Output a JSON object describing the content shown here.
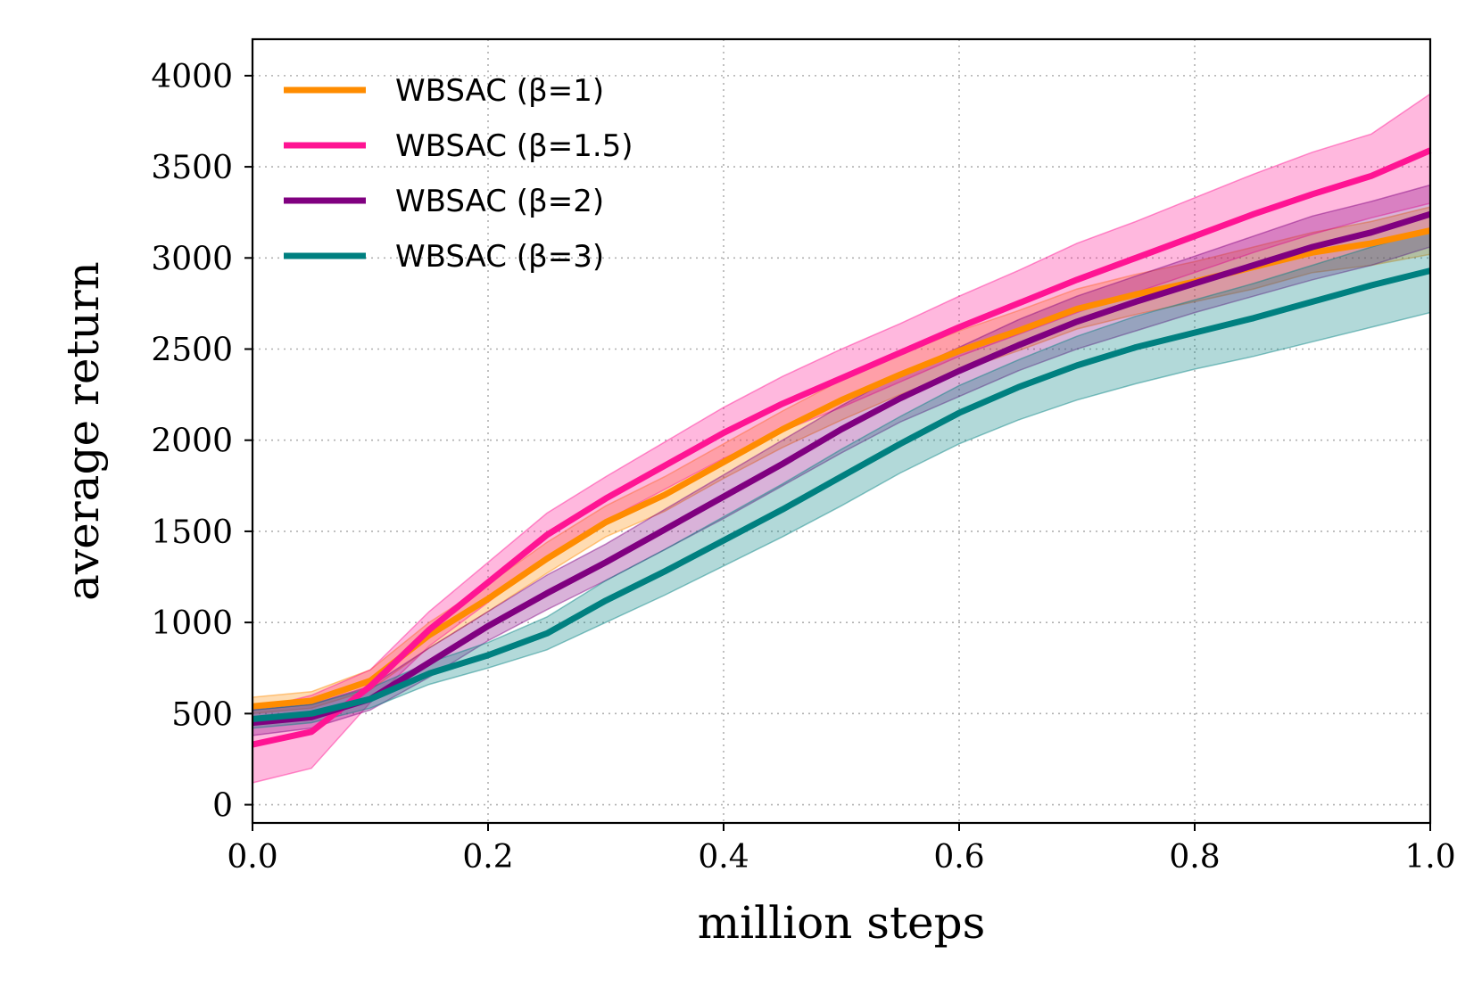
{
  "chart_data": {
    "type": "line",
    "xlabel": "million steps",
    "ylabel": "average return",
    "xlim": [
      0.0,
      1.0
    ],
    "ylim": [
      -100,
      4200
    ],
    "grid": true,
    "legend_position": "top-left",
    "x_ticks": [
      0.0,
      0.2,
      0.4,
      0.6,
      0.8,
      1.0
    ],
    "x_tick_labels": [
      "0.0",
      "0.2",
      "0.4",
      "0.6",
      "0.8",
      "1.0"
    ],
    "y_ticks": [
      0,
      500,
      1000,
      1500,
      2000,
      2500,
      3000,
      3500,
      4000
    ],
    "y_tick_labels": [
      "0",
      "500",
      "1000",
      "1500",
      "2000",
      "2500",
      "3000",
      "3500",
      "4000"
    ],
    "x": [
      0.0,
      0.05,
      0.1,
      0.15,
      0.2,
      0.25,
      0.3,
      0.35,
      0.4,
      0.45,
      0.5,
      0.55,
      0.6,
      0.65,
      0.7,
      0.75,
      0.8,
      0.85,
      0.9,
      0.95,
      1.0
    ],
    "series": [
      {
        "name": "WBSAC (β=1)",
        "color": "#ff8c00",
        "values": [
          540,
          570,
          680,
          930,
          1130,
          1350,
          1550,
          1700,
          1880,
          2060,
          2220,
          2360,
          2490,
          2600,
          2720,
          2800,
          2870,
          2950,
          3030,
          3080,
          3150
        ],
        "lower": [
          500,
          530,
          630,
          860,
          1060,
          1270,
          1470,
          1610,
          1790,
          1960,
          2110,
          2250,
          2380,
          2490,
          2610,
          2690,
          2760,
          2830,
          2920,
          2960,
          3020
        ],
        "upper": [
          590,
          620,
          740,
          1000,
          1210,
          1440,
          1640,
          1800,
          1980,
          2160,
          2330,
          2470,
          2600,
          2710,
          2830,
          2910,
          2980,
          3060,
          3140,
          3200,
          3280
        ]
      },
      {
        "name": "WBSAC (β=1.5)",
        "color": "#ff1493",
        "values": [
          330,
          400,
          650,
          960,
          1220,
          1480,
          1680,
          1860,
          2040,
          2200,
          2340,
          2480,
          2620,
          2750,
          2880,
          3000,
          3120,
          3240,
          3350,
          3450,
          3590
        ],
        "lower": [
          120,
          200,
          560,
          870,
          1110,
          1360,
          1560,
          1730,
          1900,
          2050,
          2180,
          2320,
          2460,
          2580,
          2700,
          2810,
          2920,
          3030,
          3130,
          3220,
          3300
        ],
        "upper": [
          520,
          600,
          740,
          1060,
          1330,
          1600,
          1800,
          1990,
          2180,
          2350,
          2500,
          2640,
          2790,
          2930,
          3080,
          3200,
          3330,
          3460,
          3580,
          3680,
          3900
        ]
      },
      {
        "name": "WBSAC (β=2)",
        "color": "#800080",
        "values": [
          450,
          480,
          580,
          780,
          980,
          1160,
          1330,
          1510,
          1690,
          1870,
          2060,
          2230,
          2380,
          2520,
          2650,
          2760,
          2860,
          2960,
          3060,
          3140,
          3240
        ],
        "lower": [
          380,
          420,
          520,
          700,
          900,
          1070,
          1230,
          1400,
          1570,
          1750,
          1930,
          2100,
          2240,
          2380,
          2500,
          2600,
          2700,
          2790,
          2880,
          2960,
          3060
        ],
        "upper": [
          520,
          550,
          650,
          860,
          1060,
          1260,
          1430,
          1620,
          1810,
          2000,
          2190,
          2360,
          2510,
          2660,
          2790,
          2900,
          3010,
          3120,
          3230,
          3310,
          3400
        ]
      },
      {
        "name": "WBSAC (β=3)",
        "color": "#008080",
        "values": [
          470,
          500,
          580,
          720,
          820,
          940,
          1120,
          1280,
          1450,
          1620,
          1800,
          1980,
          2150,
          2290,
          2410,
          2510,
          2590,
          2670,
          2760,
          2850,
          2930
        ],
        "lower": [
          420,
          450,
          530,
          660,
          750,
          850,
          1000,
          1150,
          1310,
          1470,
          1640,
          1820,
          1980,
          2110,
          2220,
          2310,
          2390,
          2460,
          2540,
          2620,
          2700
        ],
        "upper": [
          520,
          550,
          640,
          780,
          890,
          1030,
          1230,
          1400,
          1580,
          1760,
          1950,
          2130,
          2300,
          2440,
          2570,
          2680,
          2770,
          2860,
          2960,
          3060,
          3150
        ]
      }
    ]
  }
}
